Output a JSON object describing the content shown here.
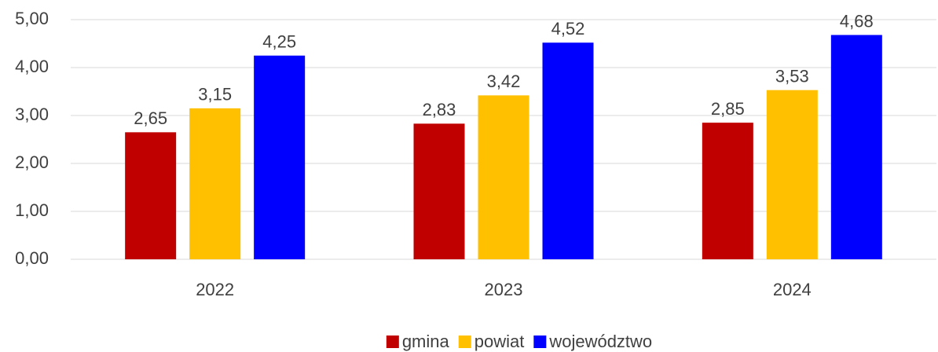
{
  "chart_data": {
    "type": "bar",
    "categories": [
      "2022",
      "2023",
      "2024"
    ],
    "series": [
      {
        "name": "gmina",
        "color": "#c00000",
        "values": [
          2.65,
          2.83,
          2.85
        ],
        "value_labels": [
          "2,65",
          "2,83",
          "2,85"
        ]
      },
      {
        "name": "powiat",
        "color": "#ffc000",
        "values": [
          3.15,
          3.42,
          3.53
        ],
        "value_labels": [
          "3,15",
          "3,42",
          "3,53"
        ]
      },
      {
        "name": "województwo",
        "color": "#0000ff",
        "values": [
          4.25,
          4.52,
          4.68
        ],
        "value_labels": [
          "4,25",
          "4,52",
          "4,68"
        ]
      }
    ],
    "ylim": [
      0,
      5
    ],
    "yticks": [
      {
        "value": 0,
        "label": "0,00"
      },
      {
        "value": 1,
        "label": "1,00"
      },
      {
        "value": 2,
        "label": "2,00"
      },
      {
        "value": 3,
        "label": "3,00"
      },
      {
        "value": 4,
        "label": "4,00"
      },
      {
        "value": 5,
        "label": "5,00"
      }
    ],
    "grid": true,
    "legend": "bottom"
  }
}
